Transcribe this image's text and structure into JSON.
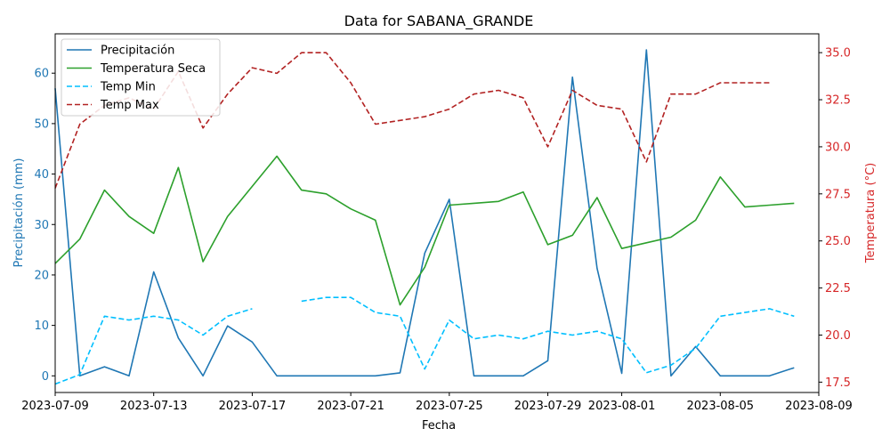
{
  "chart_data": {
    "type": "line",
    "title": "Data for SABANA_GRANDE",
    "xlabel": "Fecha",
    "ylabel_left": "Precipitación (mm)",
    "ylabel_right": "Temperatura (°C)",
    "left_color": "#1f77b4",
    "right_color": "#d62728",
    "xlim": [
      "2023-07-09",
      "2023-08-09"
    ],
    "ylim_left": [
      -3.3,
      67.8
    ],
    "ylim_right": [
      16.95,
      36.0
    ],
    "x_ticks": [
      "2023-07-09",
      "2023-07-13",
      "2023-07-17",
      "2023-07-21",
      "2023-07-25",
      "2023-07-29",
      "2023-08-01",
      "2023-08-05",
      "2023-08-09"
    ],
    "y_ticks_left": [
      "0",
      "10",
      "20",
      "30",
      "40",
      "50",
      "60"
    ],
    "y_ticks_right": [
      "17.5",
      "20.0",
      "22.5",
      "25.0",
      "27.5",
      "30.0",
      "32.5",
      "35.0"
    ],
    "grid": false,
    "legend_position": "top-left",
    "x": [
      "2023-07-09",
      "2023-07-10",
      "2023-07-11",
      "2023-07-12",
      "2023-07-13",
      "2023-07-14",
      "2023-07-15",
      "2023-07-16",
      "2023-07-17",
      "2023-07-18",
      "2023-07-19",
      "2023-07-20",
      "2023-07-21",
      "2023-07-22",
      "2023-07-23",
      "2023-07-24",
      "2023-07-25",
      "2023-07-26",
      "2023-07-27",
      "2023-07-28",
      "2023-07-29",
      "2023-07-30",
      "2023-07-31",
      "2023-08-01",
      "2023-08-02",
      "2023-08-03",
      "2023-08-04",
      "2023-08-05",
      "2023-08-06",
      "2023-08-07",
      "2023-08-08"
    ],
    "series": [
      {
        "name": "Precipitación",
        "axis": "left",
        "color": "#1f77b4",
        "dash": "solid",
        "values": [
          57.0,
          0.0,
          1.8,
          0.0,
          20.6,
          7.5,
          0.0,
          9.9,
          6.7,
          0.0,
          0.0,
          0.0,
          0.0,
          0.0,
          0.6,
          24.3,
          35.0,
          0.0,
          0.0,
          0.0,
          3.0,
          59.2,
          21.3,
          0.5,
          64.6,
          0.0,
          5.8,
          0.0,
          0.0,
          0.0,
          1.6
        ]
      },
      {
        "name": "Temperatura Seca",
        "axis": "right",
        "color": "#2ca02c",
        "dash": "solid",
        "values": [
          23.8,
          25.1,
          27.7,
          26.3,
          25.4,
          28.9,
          23.9,
          26.3,
          27.9,
          29.5,
          27.7,
          27.5,
          26.7,
          26.1,
          21.6,
          23.6,
          26.9,
          27.0,
          27.1,
          27.6,
          24.8,
          25.3,
          27.3,
          24.6,
          24.9,
          25.2,
          26.1,
          28.4,
          26.8,
          26.9,
          27.0
        ]
      },
      {
        "name": "Temp Min",
        "axis": "right",
        "color": "#00bfff",
        "dash": "dashed",
        "values": [
          17.4,
          17.9,
          21.0,
          20.8,
          21.0,
          20.8,
          20.0,
          21.0,
          21.4,
          null,
          21.8,
          22.0,
          22.0,
          21.2,
          21.0,
          18.2,
          20.8,
          19.8,
          20.0,
          19.8,
          20.2,
          20.0,
          20.2,
          19.8,
          18.0,
          18.4,
          19.3,
          21.0,
          21.2,
          21.4,
          21.0
        ]
      },
      {
        "name": "Temp Max",
        "axis": "right",
        "color": "#b22222",
        "dash": "dashed",
        "values": [
          27.8,
          31.2,
          32.2,
          32.6,
          32.0,
          34.0,
          31.0,
          32.8,
          34.2,
          33.9,
          35.0,
          35.0,
          33.4,
          31.2,
          31.4,
          31.6,
          32.0,
          32.8,
          33.0,
          32.6,
          30.0,
          33.0,
          32.2,
          32.0,
          29.2,
          32.8,
          32.8,
          33.4,
          33.4,
          33.4,
          null
        ]
      }
    ]
  }
}
